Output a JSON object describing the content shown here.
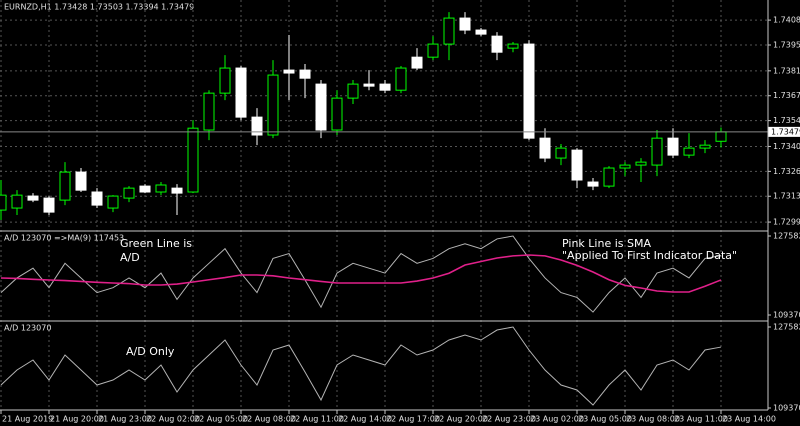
{
  "chart_data": [
    {
      "type": "candlestick",
      "title": "EURNZD,H1 1.73428 1.73503 1.73394 1.73479",
      "categories": [
        "21 Aug 2019",
        null,
        null,
        "21 Aug 20:00",
        null,
        null,
        "21 Aug 23:00",
        null,
        null,
        "22 Aug 02:00",
        null,
        null,
        "22 Aug 05:00",
        null,
        null,
        "22 Aug 08:00",
        null,
        null,
        "22 Aug 11:00",
        null,
        null,
        "22 Aug 14:00",
        null,
        null,
        "22 Aug 17:00",
        null,
        null,
        "22 Aug 20:00",
        null,
        null,
        "22 Aug 23:00",
        null,
        null,
        "23 Aug 02:00",
        null,
        null,
        "23 Aug 05:00",
        null,
        null,
        "23 Aug 08:00",
        null,
        null,
        "23 Aug 11:00",
        null,
        null,
        "23 Aug 14:00"
      ],
      "open": [
        1.73055,
        1.73066,
        1.73131,
        1.7312,
        1.73109,
        1.73261,
        1.73153,
        1.73066,
        1.7312,
        1.73185,
        1.73153,
        1.73174,
        1.73153,
        1.73489,
        1.73689,
        1.73825,
        1.73559,
        1.73462,
        1.73814,
        1.73814,
        1.73738,
        1.73489,
        1.73662,
        1.73738,
        1.73738,
        1.73705,
        1.73884,
        1.73884,
        1.73955,
        1.74096,
        1.74031,
        1.73998,
        1.73933,
        1.73955,
        1.73445,
        1.73337,
        1.7338,
        1.73207,
        1.73185,
        1.73283,
        1.73299,
        1.73299,
        1.73445,
        1.73353,
        1.73391,
        1.73428
      ],
      "high": [
        1.73218,
        1.73163,
        1.73147,
        1.73131,
        1.73315,
        1.73283,
        1.73174,
        1.73136,
        1.73185,
        1.73196,
        1.73207,
        1.73196,
        1.73543,
        1.73705,
        1.73895,
        1.73836,
        1.73608,
        1.73868,
        1.74004,
        1.73847,
        1.7376,
        1.73705,
        1.7376,
        1.73814,
        1.7376,
        1.73836,
        1.73933,
        1.73998,
        1.74128,
        1.74128,
        1.74042,
        1.7402,
        1.73966,
        1.73976,
        1.73499,
        1.73413,
        1.73391,
        1.73229,
        1.73293,
        1.73315,
        1.73337,
        1.73489,
        1.73499,
        1.73472,
        1.73434,
        1.73503
      ],
      "low": [
        1.73001,
        1.73028,
        1.73098,
        1.73028,
        1.73082,
        1.73153,
        1.73066,
        1.73044,
        1.73098,
        1.73147,
        1.73136,
        1.73028,
        1.73147,
        1.73434,
        1.73651,
        1.73543,
        1.73407,
        1.73445,
        1.73651,
        1.73662,
        1.73445,
        1.73462,
        1.7363,
        1.73705,
        1.73689,
        1.73689,
        1.73814,
        1.73868,
        1.73868,
        1.74009,
        1.73998,
        1.73868,
        1.73911,
        1.73434,
        1.73315,
        1.73299,
        1.73174,
        1.73163,
        1.73174,
        1.73239,
        1.73207,
        1.73239,
        1.73337,
        1.73337,
        1.73364,
        1.73394
      ],
      "close": [
        1.73136,
        1.73136,
        1.73109,
        1.73044,
        1.73261,
        1.73163,
        1.73082,
        1.73131,
        1.73174,
        1.73153,
        1.73191,
        1.73147,
        1.73499,
        1.73689,
        1.73825,
        1.73559,
        1.73462,
        1.73787,
        1.73798,
        1.7377,
        1.73489,
        1.73662,
        1.73738,
        1.73727,
        1.73705,
        1.73825,
        1.73825,
        1.73955,
        1.74096,
        1.74031,
        1.74009,
        1.73911,
        1.73955,
        1.73445,
        1.73337,
        1.73391,
        1.73218,
        1.73185,
        1.73283,
        1.73299,
        1.73315,
        1.73445,
        1.73353,
        1.73391,
        1.73407,
        1.73479
      ],
      "up_color": "#00ff00",
      "down_color": "#ffffff",
      "ylim": [
        1.72947,
        1.74194
      ],
      "yticks": [
        {
          "value": 1.7299,
          "label": "1.72990"
        },
        {
          "value": 1.7313,
          "label": "1.73130"
        },
        1.73265,
        {
          "value": 1.734,
          "label": "1.73400"
        },
        {
          "value": 1.7354,
          "label": "1.73540"
        },
        1.73675,
        {
          "value": 1.7381,
          "label": "1.73810"
        },
        {
          "value": 1.7395,
          "label": "1.73950"
        },
        1.74085
      ],
      "current_price": 1.73479,
      "grid": true
    },
    {
      "type": "line",
      "title": "A/D 123070 =>MA(9) 117453",
      "annotations": [
        "Green Line is",
        "A/D",
        "Pink Line is SMA",
        "\"Applied To First Indicator Data\""
      ],
      "series": [
        {
          "color": "#b4b4b4",
          "values": [
            114540,
            117912,
            120160,
            115664,
            121285,
            117912,
            114540,
            115664,
            117912,
            115664,
            119036,
            112967,
            117912,
            121285,
            124656,
            119036,
            114540,
            122408,
            123532,
            117462,
            111168,
            119036,
            121285,
            120160,
            119036,
            123532,
            121285,
            122408,
            124656,
            125780,
            124656,
            126904,
            127582,
            122408,
            117912,
            114540,
            113416,
            110044,
            114540,
            117912,
            113416,
            119036,
            120160,
            117912,
            122408,
            123070
          ]
        },
        {
          "color": "#e0208a",
          "values": [
            117899,
            117800,
            117600,
            117438,
            117300,
            117100,
            116900,
            116746,
            116600,
            116285,
            116285,
            116500,
            116977,
            117500,
            118000,
            118590,
            118590,
            118400,
            117899,
            117500,
            117100,
            116746,
            116746,
            116746,
            116746,
            116746,
            117200,
            117899,
            119000,
            120895,
            121700,
            122509,
            123000,
            123200,
            123000,
            122048,
            120800,
            119282,
            117500,
            116200,
            115594,
            114900,
            114672,
            114672,
            116000,
            117453
          ]
        }
      ],
      "ylim": [
        108217,
        128504
      ],
      "yticks": [
        127582,
        109370
      ]
    },
    {
      "type": "line",
      "title": "A/D 123070",
      "annotations": [
        "A/D Only"
      ],
      "series": [
        {
          "color": "#b4b4b4",
          "values": [
            114540,
            117912,
            120160,
            115664,
            121285,
            117912,
            114540,
            115664,
            117912,
            115664,
            119036,
            112967,
            117912,
            121285,
            124656,
            119036,
            114540,
            122408,
            123532,
            117462,
            111168,
            119036,
            121285,
            120160,
            119036,
            123532,
            121285,
            122408,
            124656,
            125780,
            124656,
            126904,
            127582,
            122408,
            117912,
            114540,
            113416,
            110044,
            114540,
            117912,
            113416,
            119036,
            120160,
            117912,
            122408,
            123070
          ]
        }
      ],
      "ylim": [
        108920,
        128706
      ],
      "yticks": [
        127582,
        109370
      ]
    }
  ]
}
